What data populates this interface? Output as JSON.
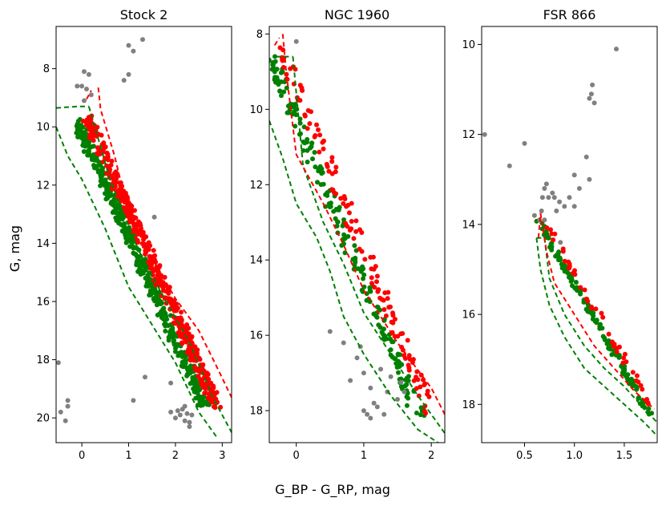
{
  "figure": {
    "xlabel": "G_BP - G_RP, mag",
    "ylabel": "G, mag"
  },
  "colors": {
    "member_blue_side": "#008000",
    "member_red_side": "#ff0000",
    "field": "#808080",
    "axis": "#000000"
  },
  "chart_data": [
    {
      "type": "scatter",
      "title": "Stock 2",
      "xlim": [
        -0.55,
        3.2
      ],
      "ylim": [
        20.85,
        6.55
      ],
      "xticks": [
        0,
        1,
        2,
        3
      ],
      "yticks": [
        8,
        10,
        12,
        14,
        16,
        18,
        20
      ],
      "xtick_labels": [
        "0",
        "1",
        "2",
        "3"
      ],
      "ytick_labels": [
        "8",
        "10",
        "12",
        "14",
        "16",
        "18",
        "20"
      ],
      "sequence": {
        "x_start": 0.0,
        "x_end": 2.75,
        "g_start": 9.8,
        "g_end": 19.6,
        "green_count": 430,
        "red_count": 430,
        "spread": 0.22,
        "seed": 11
      },
      "green_boundary": {
        "x": [
          -0.55,
          -0.3,
          0.0,
          0.5,
          1.0,
          1.5,
          2.0,
          2.5,
          2.9
        ],
        "y": [
          10.0,
          11.0,
          11.8,
          13.5,
          15.5,
          16.8,
          18.1,
          19.8,
          20.7
        ]
      },
      "green_top": {
        "x": [
          -0.55,
          -0.1,
          0.15
        ],
        "y": [
          9.35,
          9.3,
          9.3
        ]
      },
      "green_boundary_right": {
        "x": [
          0.15,
          0.6,
          1.2,
          1.8,
          2.3,
          2.8,
          3.2
        ],
        "y": [
          9.3,
          11.8,
          14.2,
          16.0,
          17.4,
          19.3,
          20.5
        ]
      },
      "red_boundary_left": {
        "x": [
          0.1,
          0.2
        ],
        "y": [
          9.05,
          8.75
        ]
      },
      "red_boundary": {
        "x": [
          0.35,
          0.4,
          0.7,
          1.0,
          1.5,
          2.0,
          2.5,
          2.9,
          3.2
        ],
        "y": [
          8.65,
          9.4,
          11.0,
          13.0,
          14.5,
          15.9,
          17.0,
          18.3,
          19.3
        ]
      },
      "field": [
        {
          "x": 0.05,
          "y": 8.1
        },
        {
          "x": 0.15,
          "y": 8.2
        },
        {
          "x": -0.1,
          "y": 8.6
        },
        {
          "x": 0.0,
          "y": 8.6
        },
        {
          "x": 0.1,
          "y": 8.7
        },
        {
          "x": 0.2,
          "y": 8.9
        },
        {
          "x": 0.05,
          "y": 9.1
        },
        {
          "x": 1.3,
          "y": 7.0
        },
        {
          "x": 1.0,
          "y": 7.2
        },
        {
          "x": 1.1,
          "y": 7.4
        },
        {
          "x": 0.9,
          "y": 8.4
        },
        {
          "x": 1.0,
          "y": 8.2
        },
        {
          "x": 1.55,
          "y": 13.1
        },
        {
          "x": 1.35,
          "y": 18.6
        },
        {
          "x": 1.1,
          "y": 19.4
        },
        {
          "x": -0.5,
          "y": 18.1
        },
        {
          "x": -0.45,
          "y": 19.8
        },
        {
          "x": -0.3,
          "y": 19.6
        },
        {
          "x": -0.35,
          "y": 20.1
        },
        {
          "x": -0.3,
          "y": 19.4
        },
        {
          "x": 1.9,
          "y": 18.8
        },
        {
          "x": 1.9,
          "y": 19.8
        },
        {
          "x": 2.0,
          "y": 20.0
        },
        {
          "x": 2.05,
          "y": 19.75
        },
        {
          "x": 2.1,
          "y": 19.9
        },
        {
          "x": 2.15,
          "y": 19.7
        },
        {
          "x": 2.2,
          "y": 20.1
        },
        {
          "x": 2.25,
          "y": 19.85
        },
        {
          "x": 2.3,
          "y": 20.15
        },
        {
          "x": 2.2,
          "y": 19.6
        },
        {
          "x": 2.3,
          "y": 20.3
        },
        {
          "x": 2.35,
          "y": 19.9
        }
      ]
    },
    {
      "type": "scatter",
      "title": "NGC 1960",
      "xlim": [
        -0.4,
        2.2
      ],
      "ylim": [
        18.85,
        7.8
      ],
      "xticks": [
        0,
        1,
        2
      ],
      "yticks": [
        8,
        10,
        12,
        14,
        16,
        18
      ],
      "xtick_labels": [
        "0",
        "1",
        "2"
      ],
      "ytick_labels": [
        "8",
        "10",
        "12",
        "14",
        "16",
        "18"
      ],
      "sequence": {
        "x_start": -0.32,
        "x_end": 1.9,
        "g_start": 8.5,
        "g_end": 18.1,
        "green_count": 200,
        "red_count": 130,
        "spread": 0.18,
        "seed": 23
      },
      "green_boundary": {
        "x": [
          -0.4,
          -0.2,
          0.0,
          0.3,
          0.5,
          0.7,
          1.0,
          1.4,
          1.8,
          2.1
        ],
        "y": [
          10.3,
          11.3,
          12.5,
          13.4,
          14.3,
          15.5,
          16.5,
          17.6,
          18.5,
          18.85
        ]
      },
      "green_top": {
        "x": [
          -0.3,
          -0.05
        ],
        "y": [
          8.6,
          8.6
        ]
      },
      "green_boundary_right": {
        "x": [
          -0.05,
          0.1,
          0.4,
          0.7,
          1.0,
          1.4,
          1.8,
          2.2
        ],
        "y": [
          8.6,
          11.5,
          13.0,
          14.1,
          15.4,
          16.5,
          17.6,
          18.6
        ]
      },
      "red_boundary_left": {
        "x": [
          -0.32,
          -0.25
        ],
        "y": [
          8.3,
          8.1
        ]
      },
      "red_boundary": {
        "x": [
          -0.2,
          -0.15,
          0.0,
          0.4,
          0.7,
          1.0,
          1.5,
          2.0,
          2.2
        ],
        "y": [
          8.0,
          9.0,
          11.2,
          12.5,
          13.6,
          14.8,
          16.2,
          17.4,
          18.1
        ]
      },
      "field": [
        {
          "x": 0.0,
          "y": 8.2
        },
        {
          "x": 0.5,
          "y": 15.9
        },
        {
          "x": 0.7,
          "y": 16.2
        },
        {
          "x": 0.9,
          "y": 16.6
        },
        {
          "x": 1.0,
          "y": 17.0
        },
        {
          "x": 1.1,
          "y": 17.4
        },
        {
          "x": 1.15,
          "y": 17.8
        },
        {
          "x": 1.1,
          "y": 18.2
        },
        {
          "x": 1.3,
          "y": 18.1
        },
        {
          "x": 1.35,
          "y": 17.5
        },
        {
          "x": 1.2,
          "y": 17.9
        },
        {
          "x": 1.5,
          "y": 17.7
        },
        {
          "x": 1.4,
          "y": 17.1
        },
        {
          "x": 1.6,
          "y": 17.5
        },
        {
          "x": 0.8,
          "y": 17.2
        },
        {
          "x": 1.0,
          "y": 18.0
        },
        {
          "x": 1.55,
          "y": 17.25
        },
        {
          "x": 1.25,
          "y": 16.9
        },
        {
          "x": 0.95,
          "y": 16.3
        },
        {
          "x": 1.05,
          "y": 18.1
        }
      ]
    },
    {
      "type": "scatter",
      "title": "FSR 866",
      "xlim": [
        0.07,
        1.83
      ],
      "ylim": [
        18.85,
        9.6
      ],
      "xticks": [
        0.5,
        1.0,
        1.5
      ],
      "yticks": [
        10,
        12,
        14,
        16,
        18
      ],
      "xtick_labels": [
        "0.5",
        "1.0",
        "1.5"
      ],
      "ytick_labels": [
        "10",
        "12",
        "14",
        "16",
        "18"
      ],
      "sequence": {
        "x_start": 0.66,
        "x_end": 1.78,
        "g_start": 13.9,
        "g_end": 18.2,
        "green_count": 150,
        "red_count": 45,
        "spread": 0.06,
        "seed": 37
      },
      "green_boundary": {
        "x": [
          0.62,
          0.66,
          0.75,
          0.9,
          1.1,
          1.3,
          1.5,
          1.7,
          1.83
        ],
        "y": [
          14.3,
          15.0,
          15.8,
          16.5,
          17.2,
          17.6,
          18.0,
          18.4,
          18.7
        ]
      },
      "green_top": {
        "x": [
          0.62,
          0.7
        ],
        "y": [
          14.3,
          14.3
        ]
      },
      "green_boundary_right": {
        "x": [
          0.7,
          0.75,
          0.9,
          1.1,
          1.3,
          1.5,
          1.7,
          1.83
        ],
        "y": [
          14.3,
          15.2,
          16.0,
          16.7,
          17.2,
          17.6,
          18.1,
          18.4
        ]
      },
      "red_boundary_left": {
        "x": [
          0.64,
          0.66
        ],
        "y": [
          14.3,
          13.75
        ]
      },
      "red_boundary": {
        "x": [
          0.66,
          0.72,
          0.8,
          1.0,
          1.2,
          1.4,
          1.6,
          1.8
        ],
        "y": [
          13.75,
          14.6,
          15.3,
          16.0,
          16.7,
          17.2,
          17.7,
          18.1
        ]
      },
      "field": [
        {
          "x": 0.1,
          "y": 12.0
        },
        {
          "x": 0.35,
          "y": 12.7
        },
        {
          "x": 0.5,
          "y": 12.2
        },
        {
          "x": 1.42,
          "y": 10.1
        },
        {
          "x": 1.18,
          "y": 10.9
        },
        {
          "x": 1.17,
          "y": 11.1
        },
        {
          "x": 1.2,
          "y": 11.3
        },
        {
          "x": 1.15,
          "y": 11.2
        },
        {
          "x": 1.12,
          "y": 12.5
        },
        {
          "x": 1.15,
          "y": 13.0
        },
        {
          "x": 1.0,
          "y": 12.9
        },
        {
          "x": 0.95,
          "y": 13.4
        },
        {
          "x": 1.05,
          "y": 13.2
        },
        {
          "x": 1.0,
          "y": 13.6
        },
        {
          "x": 0.9,
          "y": 13.6
        },
        {
          "x": 0.7,
          "y": 13.2
        },
        {
          "x": 0.72,
          "y": 13.1
        },
        {
          "x": 0.74,
          "y": 13.4
        },
        {
          "x": 0.8,
          "y": 13.4
        },
        {
          "x": 0.85,
          "y": 13.5
        },
        {
          "x": 0.68,
          "y": 13.4
        },
        {
          "x": 0.6,
          "y": 13.8
        },
        {
          "x": 0.65,
          "y": 13.9
        },
        {
          "x": 0.78,
          "y": 13.3
        },
        {
          "x": 0.67,
          "y": 13.7
        },
        {
          "x": 0.7,
          "y": 13.9
        },
        {
          "x": 0.82,
          "y": 13.7
        },
        {
          "x": 0.86,
          "y": 14.4
        }
      ]
    }
  ]
}
